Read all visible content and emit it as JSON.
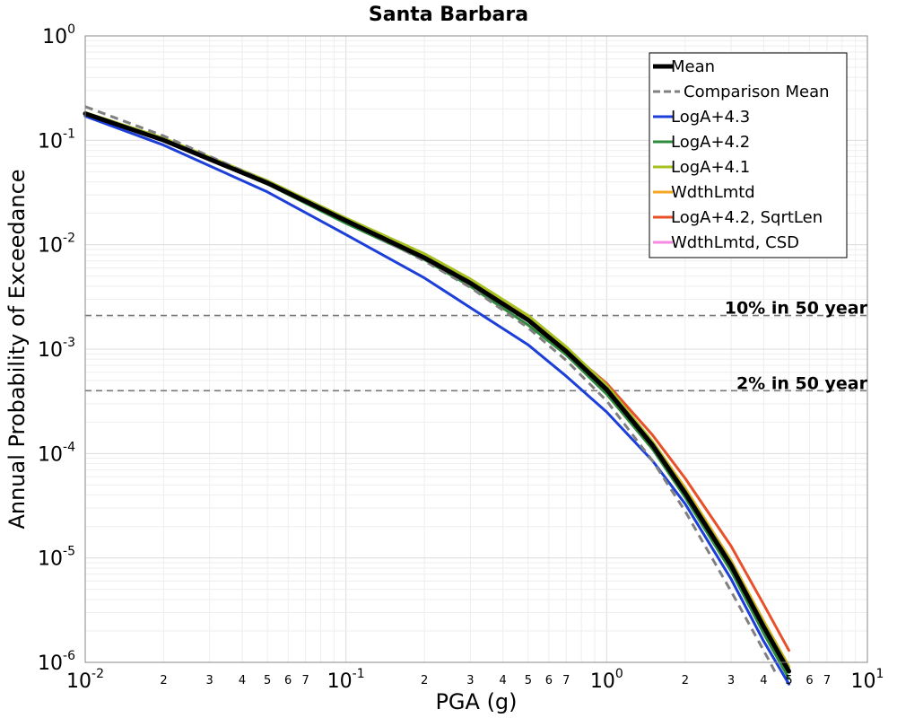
{
  "chart_data": {
    "type": "line",
    "title": "Santa Barbara",
    "xlabel": "PGA (g)",
    "ylabel": "Annual Probability of Exceedance",
    "x_scale": "log",
    "y_scale": "log",
    "xlim": [
      0.01,
      10
    ],
    "ylim": [
      1e-06,
      1
    ],
    "grid": true,
    "legend_position": "top-right",
    "x_major_ticks": [
      {
        "base": "10",
        "exp": "-2",
        "value": 0.01
      },
      {
        "base": "10",
        "exp": "-1",
        "value": 0.1
      },
      {
        "base": "10",
        "exp": "0",
        "value": 1
      },
      {
        "base": "10",
        "exp": "1",
        "value": 10
      }
    ],
    "y_major_ticks": [
      {
        "base": "10",
        "exp": "0",
        "value": 1
      },
      {
        "base": "10",
        "exp": "-1",
        "value": 0.1
      },
      {
        "base": "10",
        "exp": "-2",
        "value": 0.01
      },
      {
        "base": "10",
        "exp": "-3",
        "value": 0.001
      },
      {
        "base": "10",
        "exp": "-4",
        "value": 0.0001
      },
      {
        "base": "10",
        "exp": "-5",
        "value": 1e-05
      },
      {
        "base": "10",
        "exp": "-6",
        "value": 1e-06
      }
    ],
    "x_minor_labels": [
      "2",
      "3",
      "4",
      "5",
      "6",
      "7"
    ],
    "annotations": [
      {
        "text": "10% in 50 year",
        "y": 0.0021
      },
      {
        "text": "2% in 50 year",
        "y": 0.0004
      }
    ],
    "series": [
      {
        "name": "Mean",
        "color": "#000000",
        "style": "solid-thick",
        "x": [
          0.01,
          0.02,
          0.05,
          0.1,
          0.2,
          0.3,
          0.5,
          0.7,
          1.0,
          1.5,
          2.0,
          3.0,
          4.0,
          5.0
        ],
        "y": [
          0.18,
          0.1,
          0.039,
          0.017,
          0.0075,
          0.0043,
          0.0019,
          0.00095,
          0.00041,
          0.00012,
          4.2e-05,
          8.5e-06,
          2.2e-06,
          8.2e-07
        ]
      },
      {
        "name": "Comparison Mean",
        "color": "#808080",
        "style": "dashed",
        "x": [
          0.01,
          0.02,
          0.05,
          0.1,
          0.2,
          0.3,
          0.5,
          0.7,
          1.0,
          1.5,
          2.0,
          3.0,
          4.0,
          4.5
        ],
        "y": [
          0.21,
          0.11,
          0.04,
          0.017,
          0.007,
          0.0039,
          0.0016,
          0.00078,
          0.00032,
          8.5e-05,
          2.8e-05,
          4.8e-06,
          1.3e-06,
          7.5e-07
        ]
      },
      {
        "name": "LogA+4.3",
        "color": "#1c3fd9",
        "style": "solid",
        "x": [
          0.01,
          0.02,
          0.05,
          0.1,
          0.2,
          0.3,
          0.5,
          0.7,
          1.0,
          1.5,
          2.0,
          3.0,
          4.0,
          5.0
        ],
        "y": [
          0.17,
          0.09,
          0.032,
          0.0125,
          0.0048,
          0.0025,
          0.0011,
          0.00055,
          0.00025,
          8.5e-05,
          3.3e-05,
          6.3e-06,
          1.6e-06,
          6.2e-07
        ]
      },
      {
        "name": "LogA+4.2",
        "color": "#2e8b3c",
        "style": "solid",
        "x": [
          0.01,
          0.02,
          0.05,
          0.1,
          0.2,
          0.3,
          0.5,
          0.7,
          1.0,
          1.5,
          2.0,
          3.0,
          4.0,
          5.0
        ],
        "y": [
          0.18,
          0.1,
          0.038,
          0.016,
          0.0072,
          0.004,
          0.0017,
          0.00088,
          0.00037,
          0.00011,
          3.8e-05,
          7.5e-06,
          1.9e-06,
          7e-07
        ]
      },
      {
        "name": "LogA+4.1",
        "color": "#a8c020",
        "style": "solid",
        "x": [
          0.01,
          0.02,
          0.05,
          0.1,
          0.2,
          0.3,
          0.5,
          0.7,
          1.0,
          1.5,
          2.0,
          3.0,
          4.0,
          5.0
        ],
        "y": [
          0.185,
          0.105,
          0.041,
          0.018,
          0.0082,
          0.0047,
          0.0021,
          0.00105,
          0.00045,
          0.00013,
          4.5e-05,
          9.2e-06,
          2.4e-06,
          9e-07
        ]
      },
      {
        "name": "WdthLmtd",
        "color": "#f5a623",
        "style": "solid",
        "x": [
          0.01,
          0.02,
          0.05,
          0.1,
          0.2,
          0.3,
          0.5,
          0.7,
          1.0,
          1.5,
          2.0,
          3.0,
          4.0,
          5.0
        ],
        "y": [
          0.18,
          0.1,
          0.04,
          0.0175,
          0.0079,
          0.0045,
          0.002,
          0.001,
          0.00044,
          0.00013,
          4.7e-05,
          9.5e-06,
          2.5e-06,
          9.2e-07
        ]
      },
      {
        "name": "LogA+4.2, SqrtLen",
        "color": "#e8502a",
        "style": "solid",
        "x": [
          0.01,
          0.02,
          0.05,
          0.1,
          0.2,
          0.3,
          0.5,
          0.7,
          1.0,
          1.5,
          2.0,
          3.0,
          4.0,
          5.0
        ],
        "y": [
          0.18,
          0.1,
          0.039,
          0.017,
          0.0078,
          0.0045,
          0.002,
          0.001,
          0.00047,
          0.00015,
          5.8e-05,
          1.3e-05,
          3.6e-06,
          1.3e-06
        ]
      },
      {
        "name": "WdthLmtd, CSD",
        "color": "#f58ae0",
        "style": "solid",
        "x": [
          0.01,
          0.02,
          0.05,
          0.1,
          0.2,
          0.3,
          0.5,
          0.7,
          1.0,
          1.5,
          2.0,
          3.0,
          4.0,
          5.0
        ],
        "y": [
          0.18,
          0.1,
          0.039,
          0.017,
          0.0077,
          0.0044,
          0.00195,
          0.00098,
          0.00043,
          0.000125,
          4.4e-05,
          9e-06,
          2.3e-06,
          8.6e-07
        ]
      }
    ]
  }
}
